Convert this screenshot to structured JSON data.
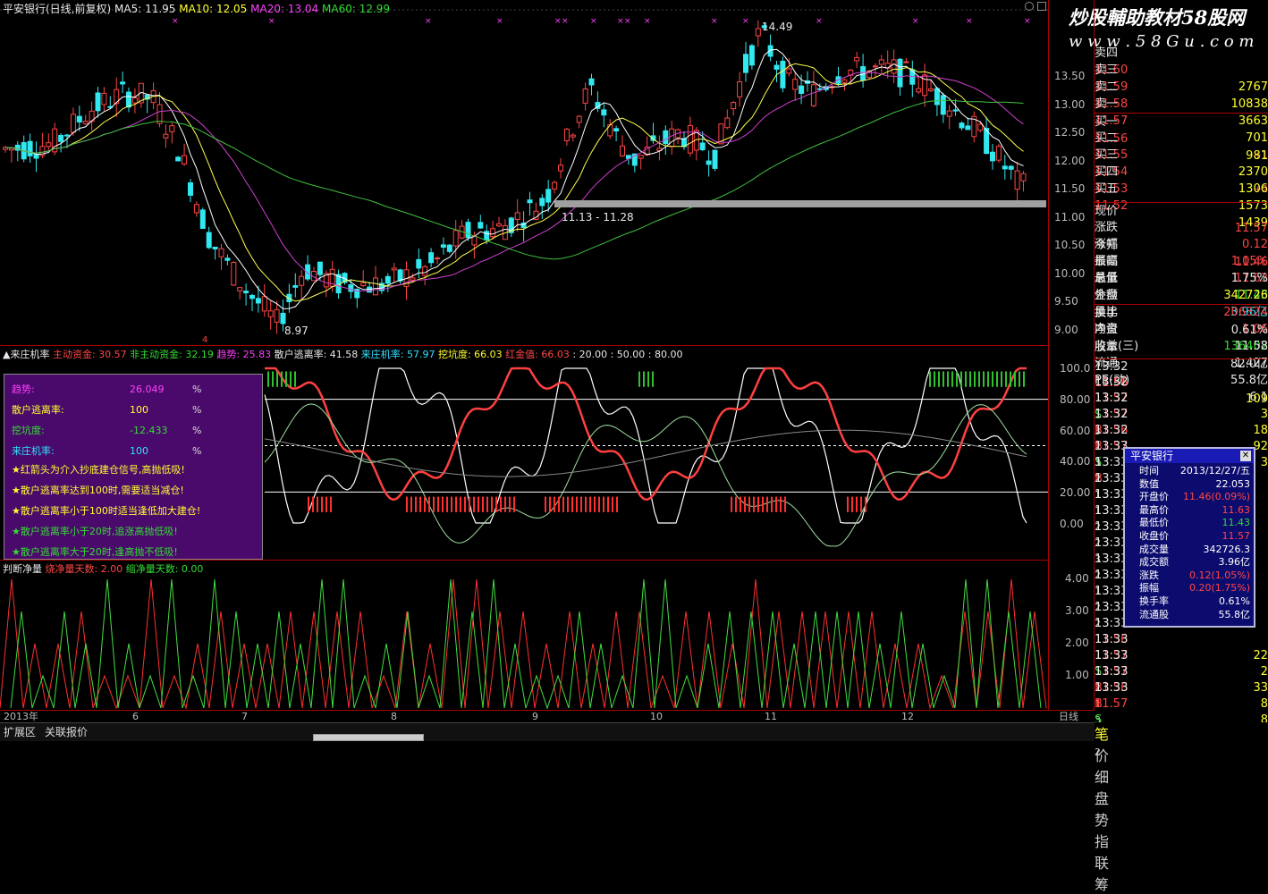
{
  "header": {
    "title": "平安银行(日线,前复权)",
    "ma5": "MA5: 11.95",
    "ma10": "MA10: 12.05",
    "ma20": "MA20: 13.04",
    "ma60": "MA60: 12.99"
  },
  "watermark": {
    "line1": "炒股輔助教材58股网",
    "line2": "w w w . 5 8 G u . c o m"
  },
  "main_chart": {
    "annotation_high": "14.49",
    "annotation_low": "8.97",
    "annotation_box": "11.13 - 11.28",
    "top_marker": "4"
  },
  "price_axis": [
    "13.50",
    "13.00",
    "12.50",
    "12.00",
    "11.50",
    "11.00",
    "10.50",
    "10.00",
    "9.50",
    "9.00"
  ],
  "indicator1": {
    "title": "▲来庄机率",
    "l1": "主动资金: 30.57",
    "l2": "非主动资金: 32.19",
    "l3": "趋势: 25.83",
    "l4": "散户逃离率: 41.58",
    "l5": "来庄机率: 57.97",
    "l6": "挖坑度: 66.03",
    "l7": "红金值: 66.03",
    "l8": ": 20.00 : 50.00 : 80.00",
    "axis": [
      "100.0",
      "80.00",
      "60.00",
      "40.00",
      "20.00",
      "0.00"
    ]
  },
  "purple_panel": {
    "rows": [
      {
        "label": "趋势:",
        "value": "26.049",
        "unit": "%"
      },
      {
        "label": "散户逃离率:",
        "value": "100",
        "unit": "%"
      },
      {
        "label": "挖坑度:",
        "value": "-12.433",
        "unit": "%"
      },
      {
        "label": "来庄机率:",
        "value": "100",
        "unit": "%"
      }
    ],
    "notes": [
      "★红箭头为介入抄底建仓信号,高抛低吸!",
      "★散户逃离率达到100时,需要适当减仓!",
      "★散户逃离率小于100时适当逢低加大建仓!",
      "★散户逃离率小于20时,追涨高抛低吸!",
      "★散户逃离率大于20时,逢高抛不低吸!"
    ]
  },
  "indicator2": {
    "title": "判断净量",
    "l1": "烧净量天数: 2.00",
    "l2": "缩净量天数: 0.00",
    "axis": [
      "4.00",
      "3.00",
      "2.00",
      "1.00"
    ]
  },
  "x_axis": {
    "labels": [
      "2013年",
      "6",
      "7",
      "8",
      "9",
      "10",
      "11",
      "12"
    ],
    "right": "日线"
  },
  "order_book": [
    {
      "label": "卖四",
      "price": "11.60",
      "vol": "2767",
      "chg": ""
    },
    {
      "label": "卖三",
      "price": "11.59",
      "vol": "10838",
      "chg": ""
    },
    {
      "label": "卖二",
      "price": "11.58",
      "vol": "3663",
      "chg": ""
    },
    {
      "label": "卖一",
      "price": "11.57",
      "vol": "701",
      "chg": "+1"
    },
    {
      "label": "买一",
      "price": "11.56",
      "vol": "981",
      "chg": ""
    },
    {
      "label": "买二",
      "price": "11.55",
      "vol": "2370",
      "chg": "+2"
    },
    {
      "label": "买三",
      "price": "11.54",
      "vol": "1306",
      "chg": ""
    },
    {
      "label": "买四",
      "price": "11.53",
      "vol": "1573",
      "chg": ""
    },
    {
      "label": "买五",
      "price": "11.52",
      "vol": "1439",
      "chg": ""
    }
  ],
  "stats": [
    {
      "a": "现价",
      "av": "11.57",
      "b": "今开",
      "bv": "11.46"
    },
    {
      "a": "涨跌",
      "av": "0.12",
      "b": "最高",
      "bv": "11.63"
    },
    {
      "a": "涨幅",
      "av": "1.05%",
      "b": "最低",
      "bv": "11.43"
    },
    {
      "a": "振幅",
      "av": "1.75%",
      "b": "金额",
      "bv": "3.96亿"
    },
    {
      "a": "总量",
      "av": "342726",
      "b": "量比",
      "bv": "1.06"
    },
    {
      "a": "外盘",
      "av": "206324",
      "b": "内盘",
      "bv": "136402"
    },
    {
      "a": "换手",
      "av": "0.61%",
      "b": "股本",
      "bv": "82.0亿"
    },
    {
      "a": "净资",
      "av": "11.58",
      "b": "流通",
      "bv": "55.8亿"
    },
    {
      "a": "收益(三)",
      "av": "1.427",
      "b": "PE(动)",
      "bv": "6.1"
    }
  ],
  "ticks": [
    {
      "time": "13:32",
      "price": "11.56",
      "vol": "109",
      "dir": "S",
      "n": "3"
    },
    {
      "time": "13:32",
      "price": "11.57",
      "vol": "3",
      "dir": "B",
      "n": "2"
    },
    {
      "time": "13:32",
      "price": "11.57",
      "vol": "18",
      "dir": "B",
      "n": "3"
    },
    {
      "time": "13:32",
      "price": "11.56",
      "vol": "92",
      "dir": "S",
      "n": "2"
    },
    {
      "time": "13:32",
      "price": "11.57",
      "vol": "3",
      "dir": "B",
      "n": "1"
    },
    {
      "time": "13:33",
      "price": "",
      "vol": "",
      "dir": "",
      "n": "3"
    },
    {
      "time": "13:33",
      "price": "",
      "vol": "",
      "dir": "",
      "n": "2"
    },
    {
      "time": "13:33",
      "price": "",
      "vol": "",
      "dir": "",
      "n": "1"
    },
    {
      "time": "13:33",
      "price": "",
      "vol": "",
      "dir": "",
      "n": "1"
    },
    {
      "time": "13:33",
      "price": "",
      "vol": "",
      "dir": "",
      "n": "2"
    },
    {
      "time": "13:33",
      "price": "",
      "vol": "",
      "dir": "",
      "n": "2"
    },
    {
      "time": "13:33",
      "price": "",
      "vol": "",
      "dir": "",
      "n": "3"
    },
    {
      "time": "13:33",
      "price": "",
      "vol": "",
      "dir": "",
      "n": "2"
    },
    {
      "time": "13:33",
      "price": "",
      "vol": "",
      "dir": "",
      "n": "1"
    },
    {
      "time": "13:33",
      "price": "",
      "vol": "",
      "dir": "",
      "n": "2"
    },
    {
      "time": "13:33",
      "price": "",
      "vol": "",
      "dir": "",
      "n": "2"
    },
    {
      "time": "13:33",
      "price": "11.56",
      "vol": "22",
      "dir": "S",
      "n": "2"
    },
    {
      "time": "13:33",
      "price": "11.57",
      "vol": "2",
      "dir": "B",
      "n": "1"
    },
    {
      "time": "13:33",
      "price": "11.57",
      "vol": "33",
      "dir": "B",
      "n": "3"
    },
    {
      "time": "13:33",
      "price": "11.56",
      "vol": "8",
      "dir": "S",
      "n": "1"
    },
    {
      "time": "13:33",
      "price": "11.57",
      "vol": "8",
      "dir": "B",
      "n": "2"
    }
  ],
  "popup": {
    "title": "平安银行",
    "rows": [
      {
        "k": "时间",
        "v": "2013/12/27/五"
      },
      {
        "k": "数值",
        "v": "22.053"
      },
      {
        "k": "开盘价",
        "v": "11.46(0.09%)"
      },
      {
        "k": "最高价",
        "v": "11.63"
      },
      {
        "k": "最低价",
        "v": "11.43"
      },
      {
        "k": "收盘价",
        "v": "11.57"
      },
      {
        "k": "成交量",
        "v": "342726.3"
      },
      {
        "k": "成交额",
        "v": "3.96亿"
      },
      {
        "k": "涨跌",
        "v": "0.12(1.05%)"
      },
      {
        "k": "振幅",
        "v": "0.20(1.75%)"
      },
      {
        "k": "换手率",
        "v": "0.61%"
      },
      {
        "k": "流通股",
        "v": "55.8亿"
      }
    ]
  },
  "status": {
    "tab1": "扩展区",
    "tab2": "关联报价"
  },
  "bottom_tabs": [
    "笔",
    "价",
    "细",
    "盘",
    "势",
    "指",
    "联",
    "筹"
  ]
}
